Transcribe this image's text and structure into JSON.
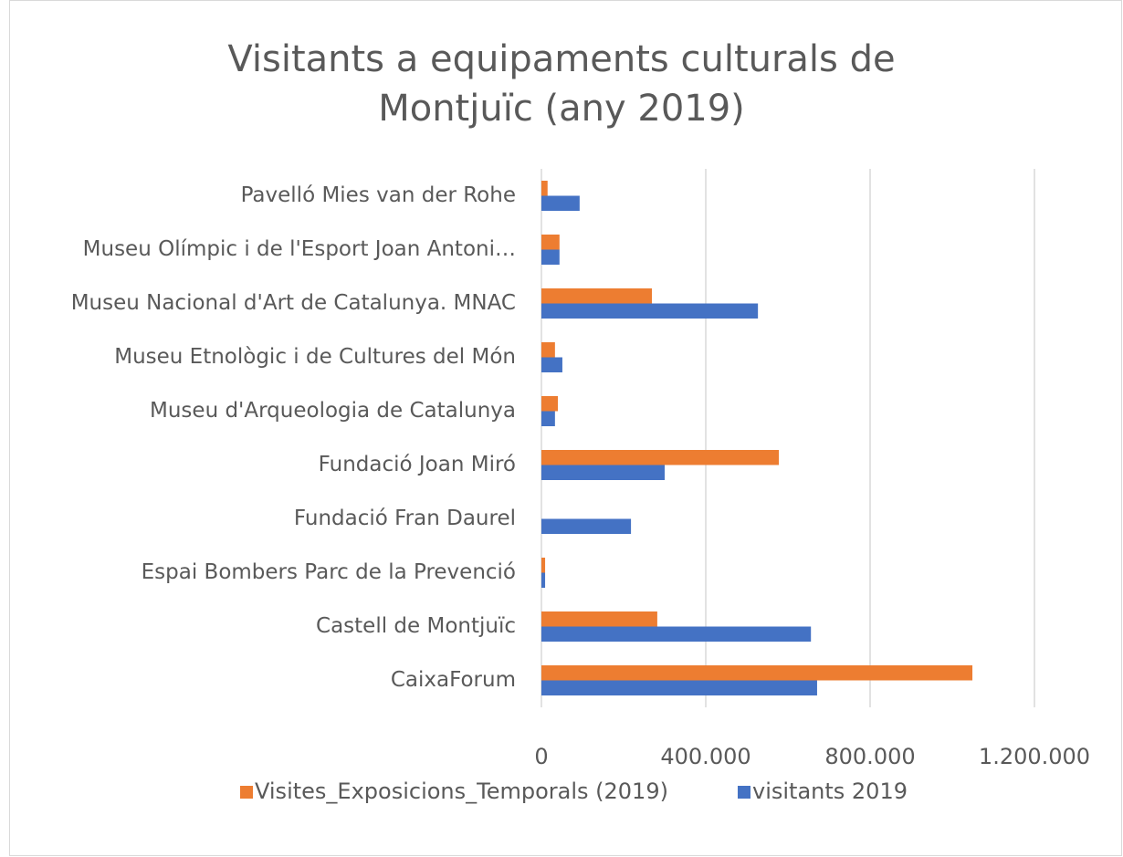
{
  "chart_data": {
    "type": "bar",
    "orientation": "horizontal",
    "title": "Visitants a equipaments culturals de Montjuïc (any 2019)",
    "categories": [
      "CaixaForum",
      "Castell de Montjuïc",
      "Espai Bombers Parc de la Prevenció",
      "Fundació Fran Daurel",
      "Fundació Joan Miró",
      "Museu d'Arqueologia de Catalunya",
      "Museu Etnològic i de Cultures del Món",
      "Museu Nacional d'Art de Catalunya. MNAC",
      "Museu Olímpic i de l'Esport Joan Antoni…",
      "Pavelló Mies van der Rohe"
    ],
    "series": [
      {
        "name": "Visites_Exposicions_Temporals (2019)",
        "color": "#ed7d31",
        "values": [
          1049000,
          282000,
          9000,
          null,
          578000,
          40000,
          33000,
          269000,
          44000,
          15000
        ]
      },
      {
        "name": "visitants 2019",
        "color": "#4472c4",
        "values": [
          671000,
          656000,
          9000,
          218000,
          300000,
          33000,
          51000,
          527000,
          44000,
          93000
        ]
      }
    ],
    "xlim": [
      0,
      1200000
    ],
    "xticks": [
      0,
      {
        "value": 400000,
        "label": "400.000"
      },
      {
        "value": 800000,
        "label": "800.000"
      },
      {
        "value": 1200000,
        "label": "1.200.000"
      }
    ],
    "grid": true,
    "legend": "bottom"
  }
}
